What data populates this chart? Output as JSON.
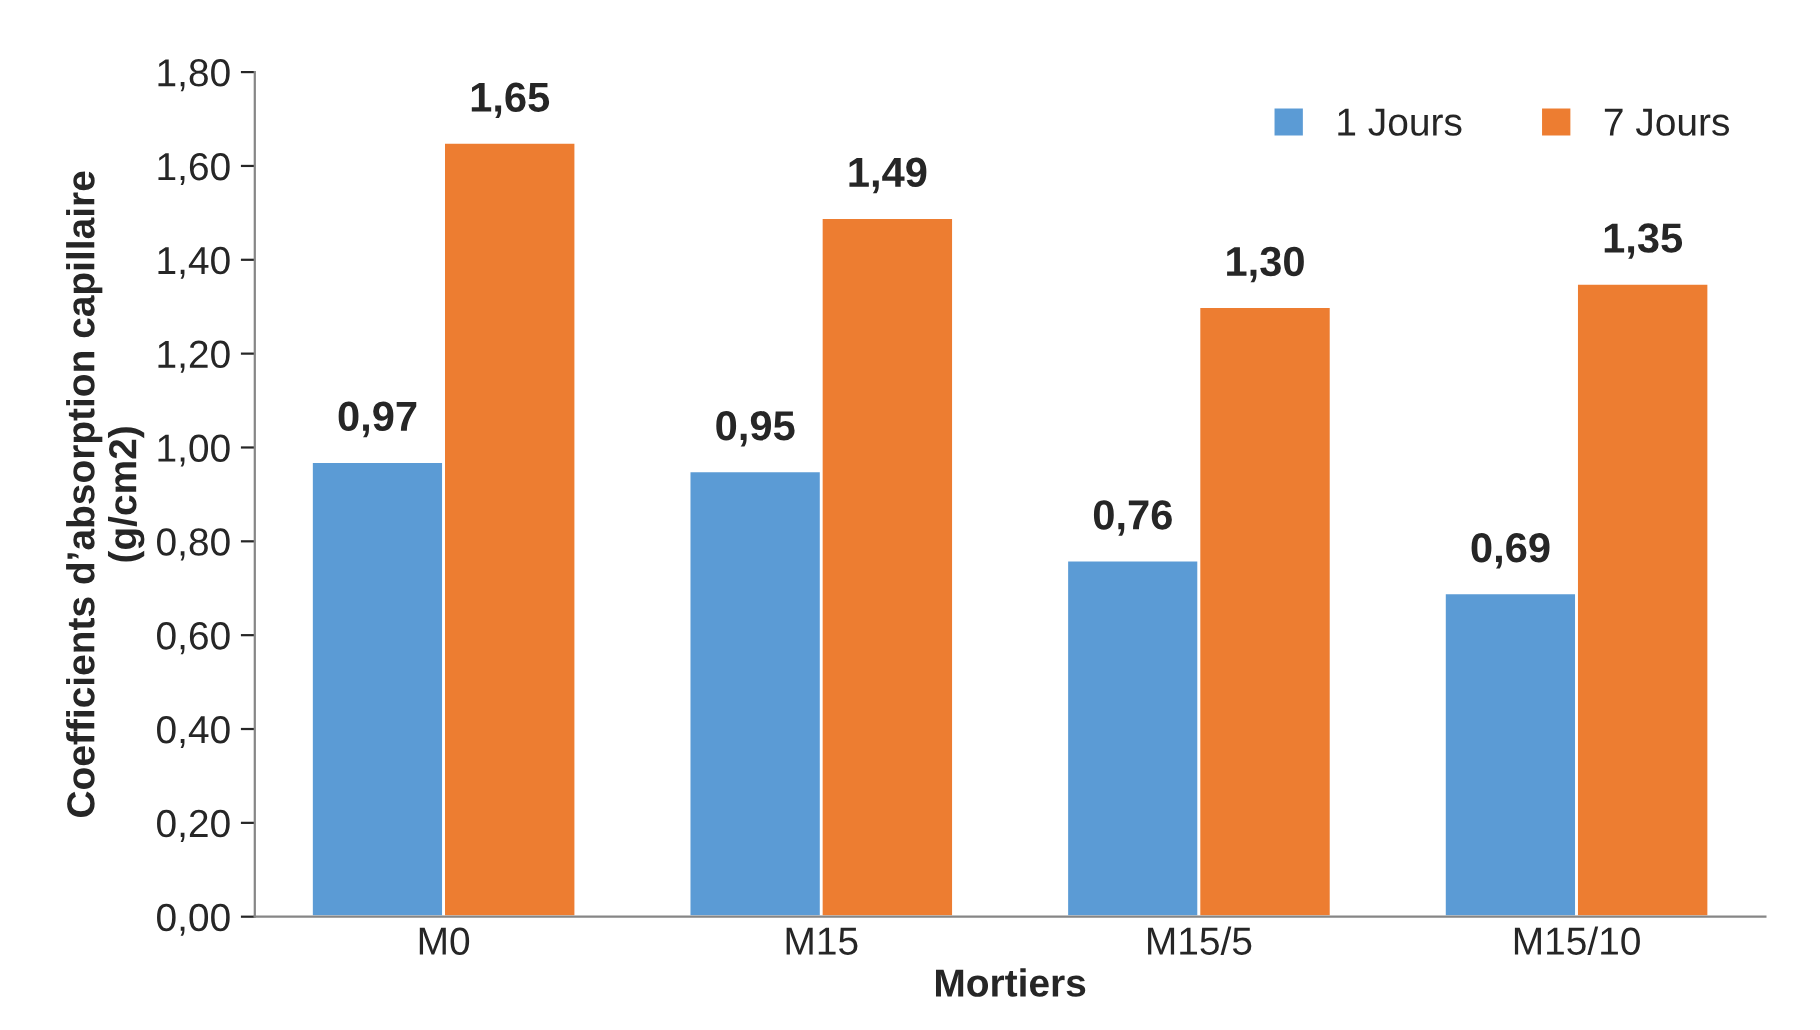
{
  "chart_data": {
    "type": "bar",
    "xlabel": "Mortiers",
    "ylabel": "Coefficients d’absorption capillaire\n(g/cm2)",
    "categories": [
      "M0",
      "M15",
      "M15/5",
      "M15/10"
    ],
    "series": [
      {
        "name": "1 Jours",
        "color": "#5b9bd5",
        "values": [
          0.97,
          0.95,
          0.76,
          0.69
        ],
        "value_labels": [
          "0,97",
          "0,95",
          "0,76",
          "0,69"
        ]
      },
      {
        "name": "7 Jours",
        "color": "#ed7d31",
        "values": [
          1.65,
          1.49,
          1.3,
          1.35
        ],
        "value_labels": [
          "1,65",
          "1,49",
          "1,30",
          "1,35"
        ]
      }
    ],
    "ylim": [
      0,
      1.8
    ],
    "yticks": [
      {
        "value": 0,
        "label": "0,00"
      },
      {
        "value": 0.2,
        "label": "0,20"
      },
      {
        "value": 0.4,
        "label": "0,40"
      },
      {
        "value": 0.6,
        "label": "0,60"
      },
      {
        "value": 0.8,
        "label": "0,80"
      },
      {
        "value": 1.0,
        "label": "1,00"
      },
      {
        "value": 1.2,
        "label": "1,20"
      },
      {
        "value": 1.4,
        "label": "1,40"
      },
      {
        "value": 1.6,
        "label": "1,60"
      },
      {
        "value": 1.8,
        "label": "1,80"
      }
    ],
    "grid": false,
    "legend": "top right"
  }
}
